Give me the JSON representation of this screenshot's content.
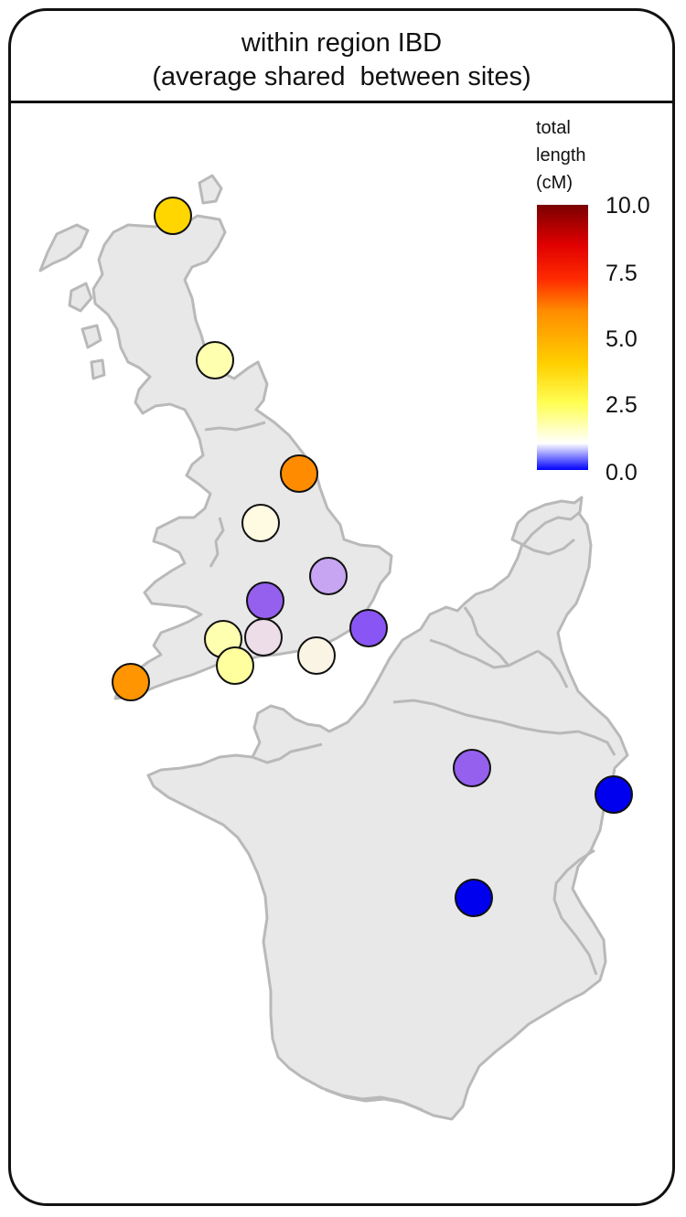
{
  "panel": {
    "title_line1": "within region IBD",
    "title_line2": "(average shared  between sites)"
  },
  "legend": {
    "title_lines": [
      "total",
      "length",
      "(cM)"
    ],
    "min": 0,
    "max": 10,
    "ticks": [
      "10.0",
      "7.5",
      "5.0",
      "2.5",
      "0.0"
    ],
    "scale_colors": [
      "#0000ff",
      "#ffffff",
      "#ffff55",
      "#ffd000",
      "#ff8c00",
      "#ff2a00",
      "#e00000",
      "#7a0000"
    ]
  },
  "map": {
    "regions": [
      "Great Britain",
      "France",
      "Low Countries"
    ],
    "land_color": "#e8e8e8",
    "border_color": "#b9b9b9",
    "sites": [
      {
        "id": "north-scotland",
        "value": 3.5,
        "color": "#ffd600"
      },
      {
        "id": "south-scotland",
        "value": 2.1,
        "color": "#ffffb0"
      },
      {
        "id": "northeast-england",
        "value": 4.9,
        "color": "#ff8c00"
      },
      {
        "id": "north-midlands",
        "value": 1.6,
        "color": "#fffbe3"
      },
      {
        "id": "east-england",
        "value": 1.0,
        "color": "#c8a5f2"
      },
      {
        "id": "west-midlands",
        "value": 0.6,
        "color": "#9560ee"
      },
      {
        "id": "kent",
        "value": 0.5,
        "color": "#8a55f5"
      },
      {
        "id": "wales-south",
        "value": 2.1,
        "color": "#ffffb0"
      },
      {
        "id": "wessex",
        "value": 1.3,
        "color": "#ecdde8"
      },
      {
        "id": "devon",
        "value": 2.3,
        "color": "#ffff9e"
      },
      {
        "id": "hampshire",
        "value": 1.6,
        "color": "#faf4e4"
      },
      {
        "id": "cornwall",
        "value": 4.9,
        "color": "#ff9500"
      },
      {
        "id": "northeast-france",
        "value": 0.6,
        "color": "#9560ee"
      },
      {
        "id": "alsace",
        "value": 0.0,
        "color": "#0000ee"
      },
      {
        "id": "south-france",
        "value": 0.0,
        "color": "#0000ee"
      }
    ]
  }
}
